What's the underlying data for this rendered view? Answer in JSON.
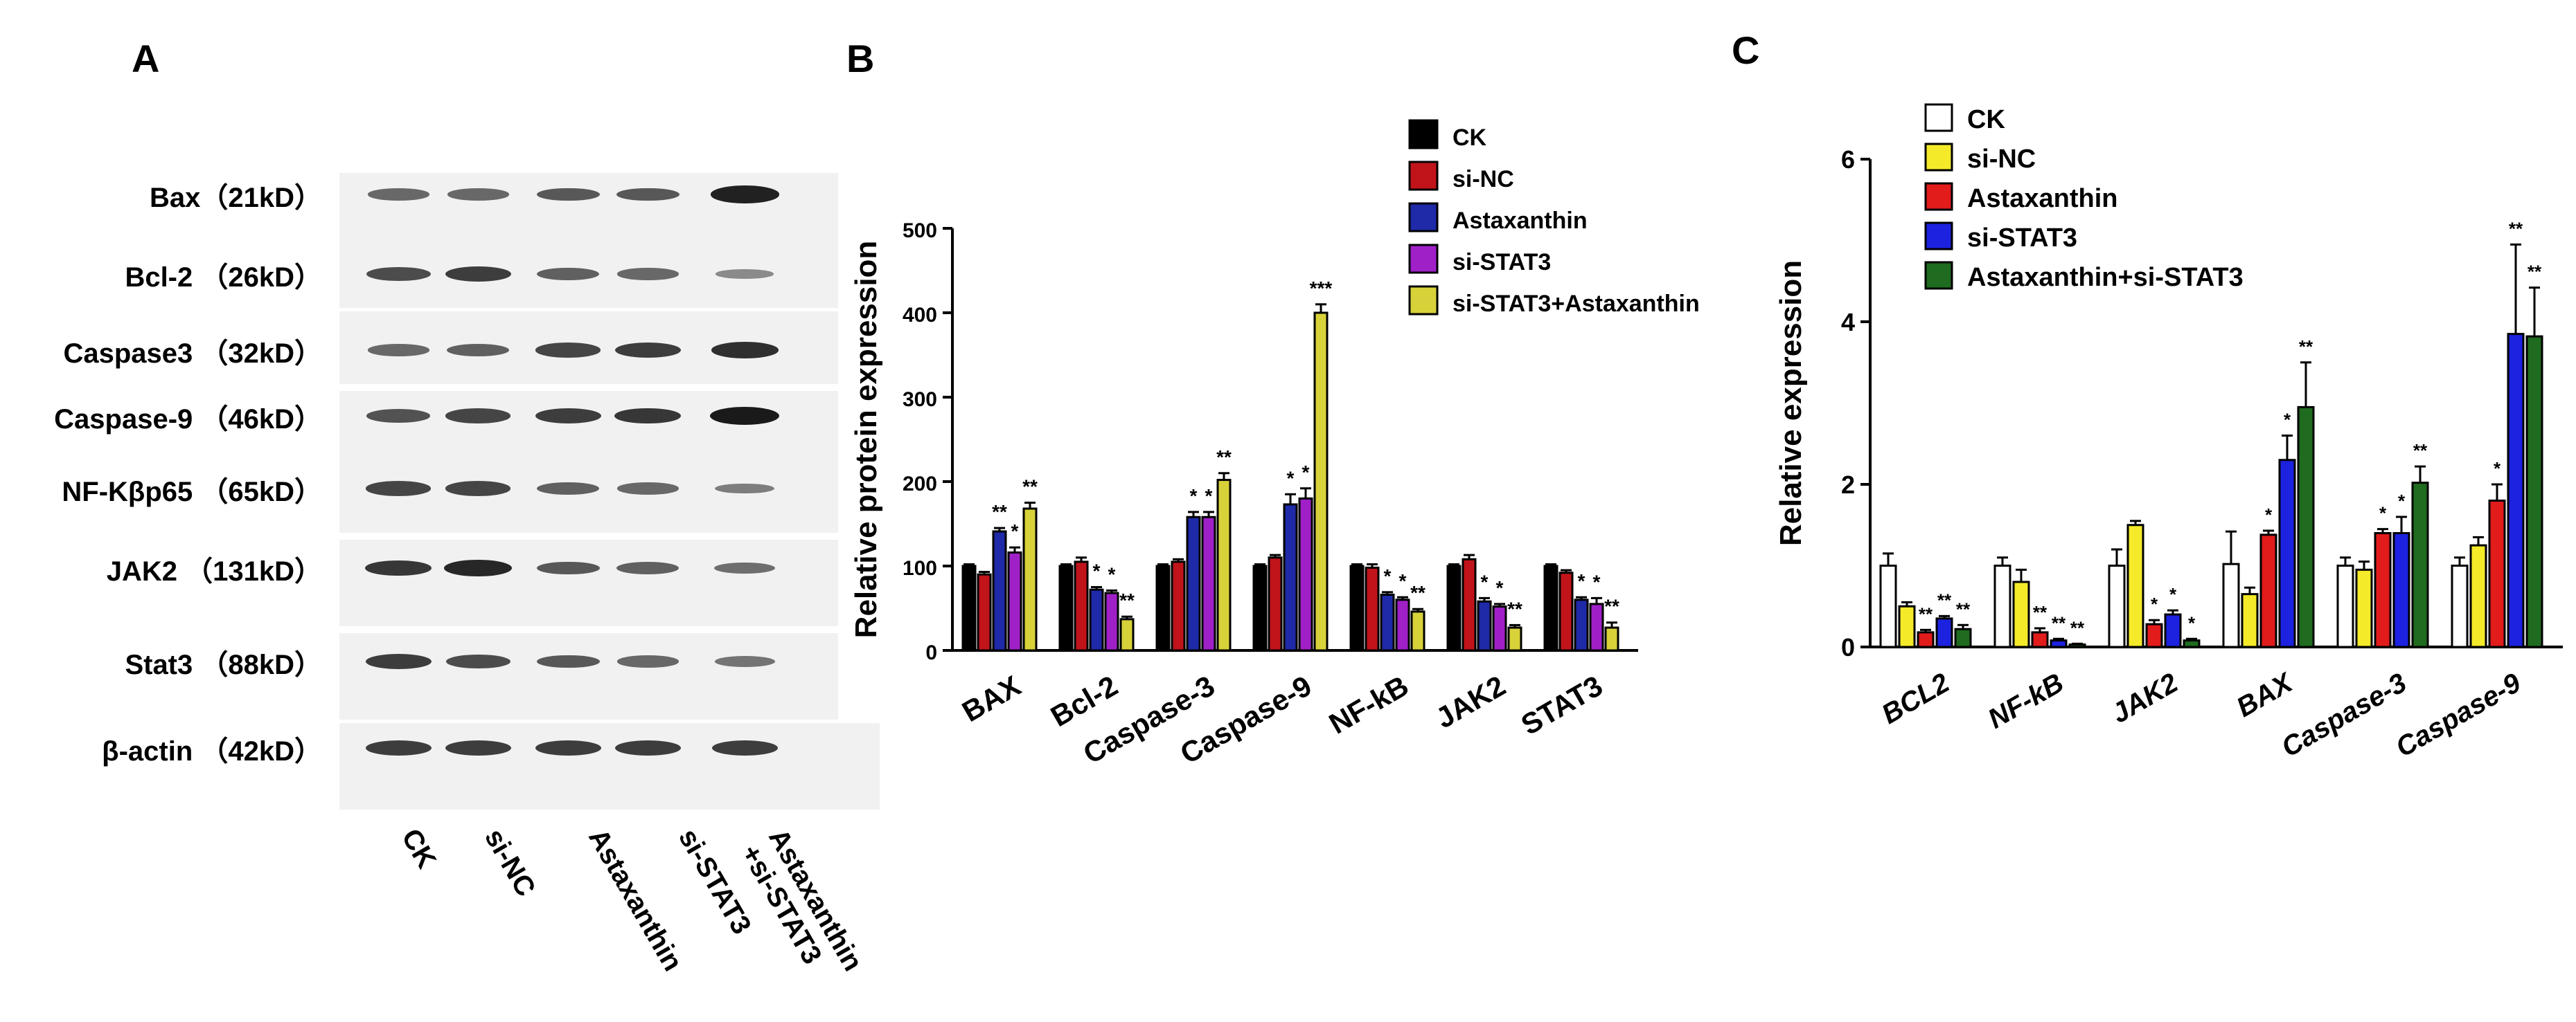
{
  "panels": {
    "a": "A",
    "b": "B",
    "c": "C"
  },
  "blot": {
    "proteins": [
      {
        "name": "Bax（21kD）",
        "intensity": [
          0.45,
          0.45,
          0.55,
          0.55,
          0.95
        ]
      },
      {
        "name": "Bcl-2 （26kD）",
        "intensity": [
          0.65,
          0.75,
          0.5,
          0.45,
          0.2
        ]
      },
      {
        "name": "Caspase3 （32kD）",
        "intensity": [
          0.45,
          0.5,
          0.7,
          0.75,
          0.85
        ]
      },
      {
        "name": "Caspase-9 （46kD）",
        "intensity": [
          0.6,
          0.7,
          0.75,
          0.8,
          1.0
        ]
      },
      {
        "name": "NF-Kβp65 （65kD）",
        "intensity": [
          0.7,
          0.7,
          0.5,
          0.45,
          0.3
        ]
      },
      {
        "name": "JAK2 （131kD）",
        "intensity": [
          0.8,
          0.9,
          0.55,
          0.5,
          0.4
        ]
      },
      {
        "name": "Stat3 （88kD）",
        "intensity": [
          0.75,
          0.65,
          0.55,
          0.45,
          0.35
        ]
      },
      {
        "name": "β-actin （42kD）",
        "intensity": [
          0.75,
          0.75,
          0.75,
          0.75,
          0.75
        ]
      }
    ],
    "lanes": [
      "CK",
      "si-NC",
      "Astaxanthin",
      "si-STAT3",
      "Astaxanthin\n+si-STAT3"
    ]
  },
  "chart_data": [
    {
      "type": "bar",
      "panel": "B",
      "ylabel": "Relative protein expression",
      "xlabel": "",
      "ylim": [
        0,
        500
      ],
      "yticks": [
        0,
        100,
        200,
        300,
        400,
        500
      ],
      "categories": [
        "BAX",
        "Bcl-2",
        "Caspase-3",
        "Caspase-9",
        "NF-kB",
        "JAK2",
        "STAT3"
      ],
      "legend_position": "top-right",
      "series": [
        {
          "name": "CK",
          "color": "#000000",
          "values": [
            100,
            100,
            100,
            100,
            100,
            100,
            100
          ],
          "errors": [
            2,
            2,
            2,
            2,
            2,
            2,
            2
          ],
          "marks": [
            "",
            "",
            "",
            "",
            "",
            "",
            ""
          ]
        },
        {
          "name": "si-NC",
          "color": "#c0141a",
          "values": [
            90,
            105,
            105,
            110,
            98,
            108,
            92
          ],
          "errors": [
            3,
            5,
            3,
            3,
            4,
            5,
            3
          ],
          "marks": [
            "",
            "",
            "",
            "",
            "",
            "",
            ""
          ]
        },
        {
          "name": "Astaxanthin",
          "color": "#1f2aa8",
          "values": [
            141,
            72,
            158,
            173,
            66,
            58,
            60
          ],
          "errors": [
            4,
            3,
            6,
            12,
            3,
            4,
            3
          ],
          "marks": [
            "**",
            "*",
            "*",
            "*",
            "*",
            "*",
            "*"
          ]
        },
        {
          "name": "si-STAT3",
          "color": "#a020c8",
          "values": [
            116,
            68,
            158,
            180,
            60,
            52,
            55
          ],
          "errors": [
            6,
            3,
            6,
            12,
            3,
            3,
            7
          ],
          "marks": [
            "*",
            "*",
            "*",
            "*",
            "*",
            "*",
            "*"
          ]
        },
        {
          "name": "si-STAT3+Astaxanthin",
          "color": "#d8d23a",
          "values": [
            168,
            37,
            202,
            400,
            46,
            27,
            27
          ],
          "errors": [
            7,
            3,
            8,
            10,
            3,
            3,
            6
          ],
          "marks": [
            "**",
            "**",
            "**",
            "***",
            "**",
            "**",
            "**"
          ]
        }
      ]
    },
    {
      "type": "bar",
      "panel": "C",
      "ylabel": "Relative expression",
      "xlabel": "",
      "ylim": [
        0,
        6
      ],
      "yticks": [
        0,
        2,
        4,
        6
      ],
      "categories": [
        "BCL2",
        "NF-kB",
        "JAK2",
        "BAX",
        "Caspase-3",
        "Caspase-9"
      ],
      "legend_position": "top-center",
      "series": [
        {
          "name": "CK",
          "color": "#ffffff",
          "values": [
            1.0,
            1.0,
            1.0,
            1.02,
            1.0,
            1.0
          ],
          "errors": [
            0.15,
            0.1,
            0.2,
            0.4,
            0.1,
            0.1
          ],
          "marks": [
            "",
            "",
            "",
            "",
            "",
            ""
          ]
        },
        {
          "name": "si-NC",
          "color": "#f4ea2a",
          "values": [
            0.5,
            0.8,
            1.5,
            0.65,
            0.95,
            1.25
          ],
          "errors": [
            0.05,
            0.15,
            0.05,
            0.08,
            0.1,
            0.1
          ],
          "marks": [
            "",
            "",
            "",
            "",
            "",
            ""
          ]
        },
        {
          "name": "Astaxanthin",
          "color": "#e21b1b",
          "values": [
            0.18,
            0.18,
            0.28,
            1.38,
            1.4,
            1.8
          ],
          "errors": [
            0.03,
            0.05,
            0.05,
            0.05,
            0.05,
            0.2
          ],
          "marks": [
            "**",
            "**",
            "*",
            "*",
            "*",
            "*"
          ]
        },
        {
          "name": "si-STAT3",
          "color": "#1c22e0",
          "values": [
            0.35,
            0.08,
            0.4,
            2.3,
            1.4,
            3.85
          ],
          "errors": [
            0.03,
            0.02,
            0.05,
            0.3,
            0.2,
            1.1
          ],
          "marks": [
            "**",
            "**",
            "*",
            "*",
            "*",
            "**"
          ]
        },
        {
          "name": "Astaxanthin+si-STAT3",
          "color": "#1f6b1f",
          "values": [
            0.22,
            0.03,
            0.08,
            2.95,
            2.02,
            3.82
          ],
          "errors": [
            0.05,
            0.01,
            0.02,
            0.55,
            0.2,
            0.6
          ],
          "marks": [
            "**",
            "**",
            "*",
            "**",
            "**",
            "**"
          ]
        }
      ]
    }
  ]
}
